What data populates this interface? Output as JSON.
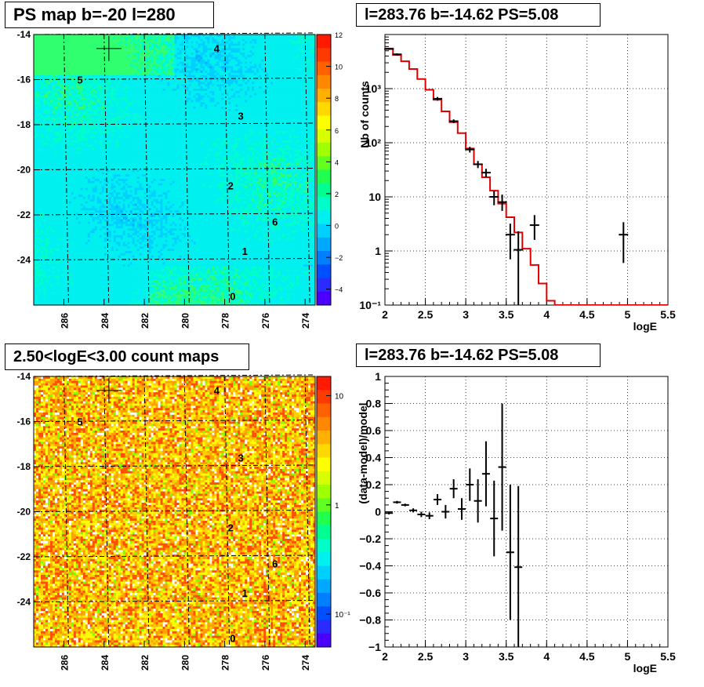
{
  "panels": {
    "tl_title": "PS map b=-20 l=280",
    "tr_title": "l=283.76 b=-14.62 PS=5.08",
    "bl_title": "2.50<logE<3.00 count maps",
    "br_title": "l=283.76 b=-14.62 PS=5.08"
  },
  "chart_data": [
    {
      "type": "heatmap",
      "id": "ps_map",
      "title": "PS map b=-20 l=280",
      "x_ticks": [
        "286",
        "284",
        "282",
        "280",
        "278",
        "276",
        "274"
      ],
      "x_tick_values": [
        286,
        284,
        282,
        280,
        278,
        276,
        274
      ],
      "y_ticks": [
        "-14",
        "-16",
        "-18",
        "-20",
        "-22",
        "-24"
      ],
      "y_tick_values": [
        -14,
        -16,
        -18,
        -20,
        -22,
        -24
      ],
      "xlim": [
        287.5,
        273.5
      ],
      "ylim": [
        -26,
        -14
      ],
      "colorbar_ticks": [
        "12",
        "10",
        "8",
        "6",
        "4",
        "2",
        "0",
        "−2",
        "−4"
      ],
      "colorbar_values": [
        12,
        10,
        8,
        6,
        4,
        2,
        0,
        -2,
        -4
      ],
      "colorbar_range": [
        -5,
        12
      ],
      "grid": true,
      "markers": [
        {
          "label": "4",
          "l": 278.4,
          "b": -14.6
        },
        {
          "label": "5",
          "l": 285.2,
          "b": -16.0
        },
        {
          "label": "3",
          "l": 277.2,
          "b": -17.6
        },
        {
          "label": "2",
          "l": 277.7,
          "b": -20.7
        },
        {
          "label": "6",
          "l": 275.5,
          "b": -22.3
        },
        {
          "label": "1",
          "l": 277.0,
          "b": -23.6
        },
        {
          "label": "0",
          "l": 277.6,
          "b": -25.6
        }
      ],
      "source_cross": {
        "l": 283.76,
        "b": -14.62
      }
    },
    {
      "type": "line",
      "id": "counts_spectrum",
      "title": "l=283.76 b=-14.62 PS=5.08",
      "xlabel": "logE",
      "ylabel": "Nb of counts",
      "xlim": [
        2,
        5.5
      ],
      "ylim": [
        0.1,
        10000
      ],
      "y_log": true,
      "x_ticks": [
        "2",
        "2.5",
        "3",
        "3.5",
        "4",
        "4.5",
        "5",
        "5.5"
      ],
      "x_tick_values": [
        2,
        2.5,
        3,
        3.5,
        4,
        4.5,
        5,
        5.5
      ],
      "y_ticks": [
        "10⁻¹",
        "1",
        "10",
        "10²",
        "10³"
      ],
      "y_tick_values": [
        0.1,
        1,
        10,
        100,
        1000
      ],
      "grid": true,
      "model_x_edges": [
        2.0,
        2.1,
        2.2,
        2.3,
        2.4,
        2.5,
        2.6,
        2.7,
        2.8,
        2.9,
        3.0,
        3.1,
        3.2,
        3.3,
        3.4,
        3.5,
        3.6,
        3.7,
        3.8,
        3.9,
        4.0,
        4.1,
        5.5
      ],
      "model_y": [
        5500,
        4200,
        3200,
        2300,
        1500,
        950,
        620,
        380,
        240,
        150,
        78,
        40,
        23,
        13,
        7.5,
        4.2,
        2.2,
        1.1,
        0.55,
        0.25,
        0.12,
        0.1
      ],
      "data_points": [
        {
          "x": 2.05,
          "y": 5400,
          "ylo": 5200,
          "yhi": 5600
        },
        {
          "x": 2.15,
          "y": 4300,
          "ylo": 4100,
          "yhi": 4500
        },
        {
          "x": 2.65,
          "y": 650,
          "ylo": 600,
          "yhi": 700
        },
        {
          "x": 2.85,
          "y": 250,
          "ylo": 230,
          "yhi": 270
        },
        {
          "x": 3.05,
          "y": 75,
          "ylo": 66,
          "yhi": 84
        },
        {
          "x": 3.15,
          "y": 40,
          "ylo": 34,
          "yhi": 46
        },
        {
          "x": 3.25,
          "y": 28,
          "ylo": 23,
          "yhi": 33
        },
        {
          "x": 3.35,
          "y": 10,
          "ylo": 7,
          "yhi": 13
        },
        {
          "x": 3.45,
          "y": 8,
          "ylo": 5.5,
          "yhi": 11
        },
        {
          "x": 3.55,
          "y": 2,
          "ylo": 0.7,
          "yhi": 3.2
        },
        {
          "x": 3.65,
          "y": 1.05,
          "ylo": 0.1,
          "yhi": 2.3
        },
        {
          "x": 3.85,
          "y": 3,
          "ylo": 1.6,
          "yhi": 4.6
        },
        {
          "x": 4.95,
          "y": 2,
          "ylo": 0.6,
          "yhi": 3.4
        }
      ]
    },
    {
      "type": "heatmap",
      "id": "count_map",
      "title": "2.50<logE<3.00 count maps",
      "x_ticks": [
        "286",
        "284",
        "282",
        "280",
        "278",
        "276",
        "274"
      ],
      "x_tick_values": [
        286,
        284,
        282,
        280,
        278,
        276,
        274
      ],
      "y_ticks": [
        "-14",
        "-16",
        "-18",
        "-20",
        "-22",
        "-24"
      ],
      "y_tick_values": [
        -14,
        -16,
        -18,
        -20,
        -22,
        -24
      ],
      "xlim": [
        287.5,
        273.5
      ],
      "ylim": [
        -26,
        -14
      ],
      "colorbar_ticks": [
        "10",
        "1",
        "10⁻¹"
      ],
      "colorbar_values": [
        10,
        1,
        0.1
      ],
      "colorbar_log": true,
      "grid": true,
      "markers": [
        {
          "label": "4",
          "l": 278.4,
          "b": -14.6
        },
        {
          "label": "5",
          "l": 285.2,
          "b": -16.0
        },
        {
          "label": "3",
          "l": 277.2,
          "b": -17.6
        },
        {
          "label": "2",
          "l": 277.7,
          "b": -20.7
        },
        {
          "label": "6",
          "l": 275.5,
          "b": -22.3
        },
        {
          "label": "1",
          "l": 277.0,
          "b": -23.6
        },
        {
          "label": "0",
          "l": 277.6,
          "b": -25.6
        }
      ],
      "source_cross": {
        "l": 283.76,
        "b": -14.62
      }
    },
    {
      "type": "scatter",
      "id": "residuals",
      "title": "l=283.76 b=-14.62 PS=5.08",
      "xlabel": "logE",
      "ylabel": "(data-model)/model",
      "xlim": [
        2,
        5.5
      ],
      "ylim": [
        -1,
        1
      ],
      "x_ticks": [
        "2",
        "2.5",
        "3",
        "3.5",
        "4",
        "4.5",
        "5",
        "5.5"
      ],
      "x_tick_values": [
        2,
        2.5,
        3,
        3.5,
        4,
        4.5,
        5,
        5.5
      ],
      "y_ticks": [
        "1",
        "0.8",
        "0.6",
        "0.4",
        "0.2",
        "0",
        "−0.2",
        "−0.4",
        "−0.6",
        "−0.8",
        "−1"
      ],
      "y_tick_values": [
        1,
        0.8,
        0.6,
        0.4,
        0.2,
        0,
        -0.2,
        -0.4,
        -0.6,
        -0.8,
        -1
      ],
      "grid": true,
      "points": [
        {
          "x": 2.05,
          "y": -0.01,
          "err": 0.01
        },
        {
          "x": 2.15,
          "y": 0.07,
          "err": 0.01
        },
        {
          "x": 2.25,
          "y": 0.05,
          "err": 0.01
        },
        {
          "x": 2.35,
          "y": 0.01,
          "err": 0.015
        },
        {
          "x": 2.45,
          "y": -0.02,
          "err": 0.02
        },
        {
          "x": 2.55,
          "y": -0.03,
          "err": 0.025
        },
        {
          "x": 2.65,
          "y": 0.09,
          "err": 0.04
        },
        {
          "x": 2.75,
          "y": 0.0,
          "err": 0.05
        },
        {
          "x": 2.85,
          "y": 0.17,
          "err": 0.07
        },
        {
          "x": 2.95,
          "y": 0.02,
          "err": 0.08
        },
        {
          "x": 3.05,
          "y": 0.2,
          "err": 0.12
        },
        {
          "x": 3.15,
          "y": 0.08,
          "err": 0.16
        },
        {
          "x": 3.25,
          "y": 0.28,
          "err": 0.24
        },
        {
          "x": 3.35,
          "y": -0.05,
          "err": 0.28
        },
        {
          "x": 3.45,
          "y": 0.33,
          "err": 0.47
        },
        {
          "x": 3.55,
          "y": -0.3,
          "err": 0.5
        },
        {
          "x": 3.65,
          "y": -0.41,
          "err": 0.6
        }
      ]
    }
  ]
}
